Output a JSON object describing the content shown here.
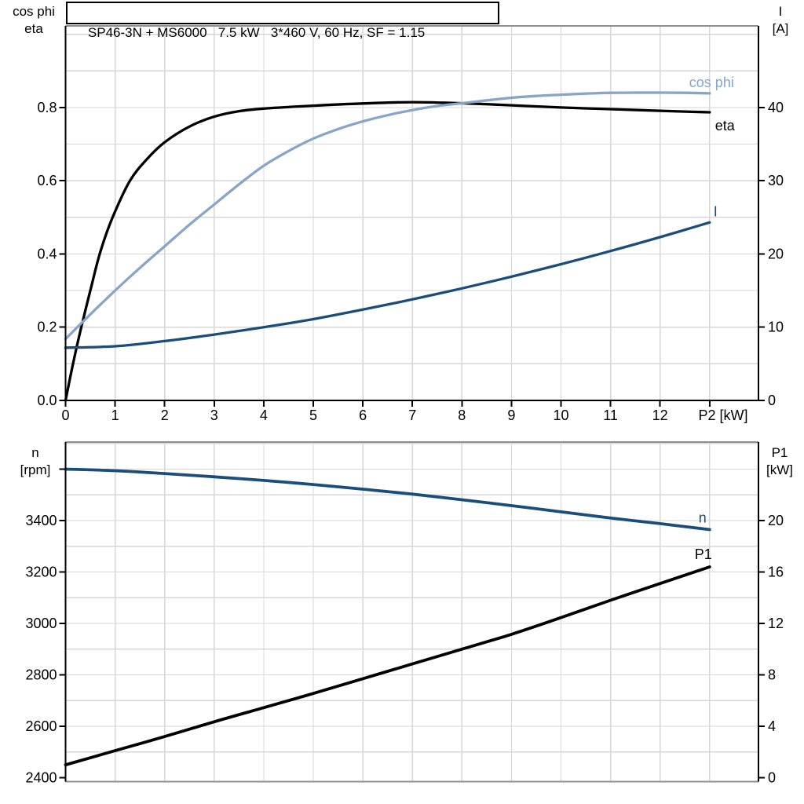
{
  "title_box": {
    "text": "SP46-3N + MS6000   7.5 kW   3*460 V, 60 Hz, SF = 1.15"
  },
  "axis_corner_labels": {
    "top_left_line1": "cos phi",
    "top_left_line2": "eta",
    "top_right_line1": "I",
    "top_right_line2": "[A]",
    "bottom_left_line1": "n",
    "bottom_left_line2": "[rpm]",
    "bottom_right_line1": "P1",
    "bottom_right_line2": "[kW]"
  },
  "colors": {
    "black": "#000000",
    "light_blue": "#87A5C8",
    "dark_blue": "#1B4D7C",
    "grid": "#d7d7d7",
    "frame_gray": "#8f8f8f",
    "text": "#000000"
  },
  "chart_data": [
    {
      "type": "line",
      "title": "SP46-3N + MS6000 7.5 kW 3*460 V, 60 Hz, SF = 1.15",
      "x_axis": {
        "unit_label": "P2 [kW]",
        "range": [
          0,
          14
        ],
        "tick_values": [
          0,
          1,
          2,
          3,
          4,
          5,
          6,
          7,
          8,
          9,
          10,
          11,
          12,
          13
        ],
        "tick_labels": [
          "0",
          "1",
          "2",
          "3",
          "4",
          "5",
          "6",
          "7",
          "8",
          "9",
          "10",
          "11",
          "12",
          ""
        ]
      },
      "left_axis": {
        "label": "cos phi / eta",
        "range": [
          0,
          1.02
        ],
        "ticks": [
          {
            "v": 0.0,
            "label": "0.0"
          },
          {
            "v": 0.2,
            "label": "0.2"
          },
          {
            "v": 0.4,
            "label": "0.4"
          },
          {
            "v": 0.6,
            "label": "0.6"
          },
          {
            "v": 0.8,
            "label": "0.8"
          }
        ]
      },
      "right_axis": {
        "label": "I [A]",
        "range": [
          0,
          51
        ],
        "ticks": [
          {
            "v": 0,
            "label": "0"
          },
          {
            "v": 10,
            "label": "10"
          },
          {
            "v": 20,
            "label": "20"
          },
          {
            "v": 30,
            "label": "30"
          },
          {
            "v": 40,
            "label": "40"
          }
        ]
      },
      "grid": {
        "x_step": 1,
        "y_step": 0.1,
        "on": true
      },
      "legend_position": "curve-end-labels",
      "series": [
        {
          "name": "eta",
          "axis": "left",
          "color_key": "black",
          "label": {
            "text": "eta",
            "dx": 7,
            "dy": 23
          },
          "points": [
            [
              0,
              0
            ],
            [
              0.15,
              0.1
            ],
            [
              0.3,
              0.19
            ],
            [
              0.5,
              0.3
            ],
            [
              0.7,
              0.405
            ],
            [
              0.95,
              0.5
            ],
            [
              1.3,
              0.6
            ],
            [
              1.65,
              0.66
            ],
            [
              2.0,
              0.705
            ],
            [
              2.5,
              0.748
            ],
            [
              3.0,
              0.775
            ],
            [
              3.5,
              0.79
            ],
            [
              4.0,
              0.797
            ],
            [
              5.0,
              0.805
            ],
            [
              6.0,
              0.811
            ],
            [
              7.0,
              0.8145
            ],
            [
              8.0,
              0.8115
            ],
            [
              9.0,
              0.806
            ],
            [
              10.0,
              0.8
            ],
            [
              11.0,
              0.7955
            ],
            [
              12.0,
              0.791
            ],
            [
              13.0,
              0.787
            ]
          ]
        },
        {
          "name": "cos phi",
          "axis": "left",
          "color_key": "light_blue",
          "label": {
            "text": "cos phi",
            "dx": -26,
            "dy": -8
          },
          "points": [
            [
              0,
              0.168
            ],
            [
              0.5,
              0.235
            ],
            [
              1,
              0.3
            ],
            [
              1.5,
              0.362
            ],
            [
              2,
              0.421
            ],
            [
              2.5,
              0.48
            ],
            [
              3,
              0.535
            ],
            [
              3.5,
              0.59
            ],
            [
              4,
              0.641
            ],
            [
              4.5,
              0.681
            ],
            [
              5,
              0.715
            ],
            [
              5.5,
              0.741
            ],
            [
              6,
              0.762
            ],
            [
              6.5,
              0.779
            ],
            [
              7,
              0.793
            ],
            [
              7.5,
              0.804
            ],
            [
              8,
              0.8115
            ],
            [
              8.5,
              0.8195
            ],
            [
              9,
              0.8265
            ],
            [
              9.5,
              0.8315
            ],
            [
              10,
              0.835
            ],
            [
              10.5,
              0.838
            ],
            [
              11,
              0.84
            ],
            [
              11.5,
              0.8405
            ],
            [
              12,
              0.8405
            ],
            [
              12.5,
              0.84
            ],
            [
              13,
              0.8385
            ]
          ]
        },
        {
          "name": "I",
          "axis": "right",
          "color_key": "dark_blue",
          "label": {
            "text": "I",
            "dx": 5,
            "dy": -8
          },
          "points": [
            [
              0,
              7.2
            ],
            [
              1,
              7.4
            ],
            [
              2,
              8.1
            ],
            [
              3,
              9.0
            ],
            [
              4,
              10.0
            ],
            [
              5,
              11.1
            ],
            [
              6,
              12.4
            ],
            [
              7,
              13.8
            ],
            [
              8,
              15.3
            ],
            [
              9,
              16.9
            ],
            [
              10,
              18.6
            ],
            [
              11,
              20.4
            ],
            [
              12,
              22.3
            ],
            [
              13,
              24.3
            ]
          ]
        }
      ]
    },
    {
      "type": "line",
      "title": "Speed and input power vs P2",
      "x_axis": {
        "unit_label": "",
        "range": [
          0,
          14
        ],
        "tick_values": [],
        "tick_labels": []
      },
      "left_axis": {
        "label": "n [rpm]",
        "range": [
          2385,
          3705
        ],
        "ticks": [
          {
            "v": 2400,
            "label": "2400"
          },
          {
            "v": 2600,
            "label": "2600"
          },
          {
            "v": 2800,
            "label": "2800"
          },
          {
            "v": 3000,
            "label": "3000"
          },
          {
            "v": 3200,
            "label": "3200"
          },
          {
            "v": 3400,
            "label": "3400"
          },
          {
            "v": 3600,
            "label": ""
          }
        ]
      },
      "right_axis": {
        "label": "P1 [kW]",
        "range": [
          -0.3,
          26.1
        ],
        "ticks": [
          {
            "v": 0,
            "label": "0"
          },
          {
            "v": 4,
            "label": "4"
          },
          {
            "v": 8,
            "label": "8"
          },
          {
            "v": 12,
            "label": "12"
          },
          {
            "v": 16,
            "label": "16"
          },
          {
            "v": 20,
            "label": "20"
          }
        ]
      },
      "grid": {
        "x_step": 1,
        "y_step": 100,
        "on": true
      },
      "legend_position": "curve-end-labels",
      "series": [
        {
          "name": "n",
          "axis": "left",
          "color_key": "dark_blue",
          "label": {
            "text": "n",
            "dx": -14,
            "dy": -9
          },
          "points": [
            [
              0,
              3600
            ],
            [
              1,
              3594
            ],
            [
              2,
              3583
            ],
            [
              3,
              3570
            ],
            [
              4,
              3556
            ],
            [
              5,
              3540
            ],
            [
              6,
              3522
            ],
            [
              7,
              3503
            ],
            [
              8,
              3481
            ],
            [
              9,
              3458
            ],
            [
              10,
              3434
            ],
            [
              11,
              3410
            ],
            [
              12,
              3388
            ],
            [
              13,
              3365
            ]
          ]
        },
        {
          "name": "P1",
          "axis": "right",
          "color_key": "black",
          "label": {
            "text": "P1",
            "dx": -19,
            "dy": -10
          },
          "points": [
            [
              0,
              1.0
            ],
            [
              1,
              2.1
            ],
            [
              2,
              3.2
            ],
            [
              3,
              4.35
            ],
            [
              4,
              5.45
            ],
            [
              5,
              6.55
            ],
            [
              6,
              7.7
            ],
            [
              7,
              8.85
            ],
            [
              8,
              10.0
            ],
            [
              9,
              11.15
            ],
            [
              10,
              12.45
            ],
            [
              11,
              13.8
            ],
            [
              12,
              15.1
            ],
            [
              13,
              16.4
            ]
          ]
        }
      ]
    }
  ]
}
